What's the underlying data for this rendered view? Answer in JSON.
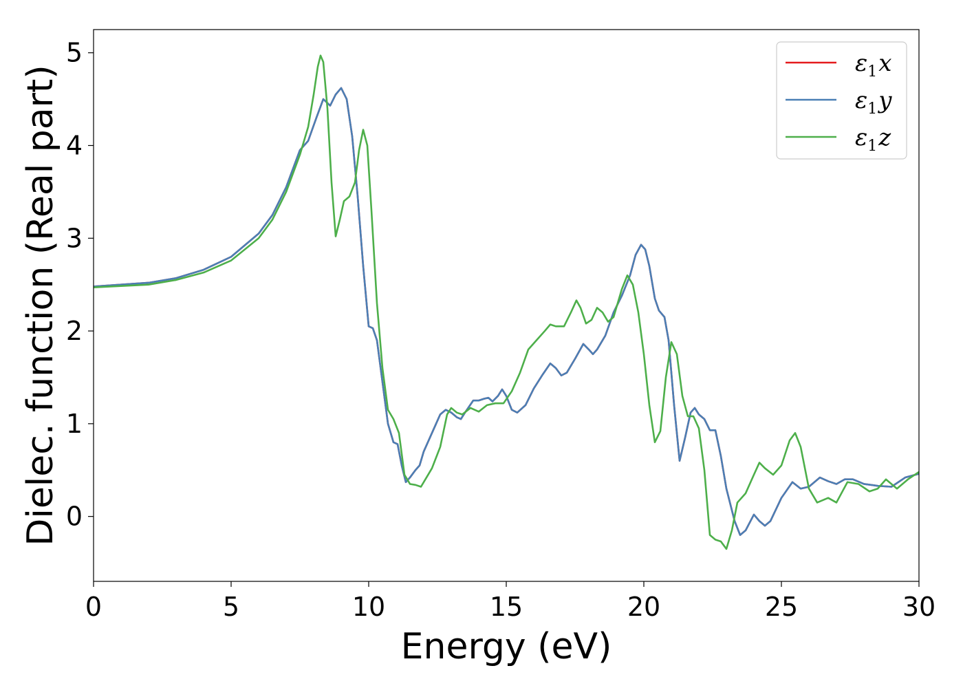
{
  "chart_data": {
    "type": "line",
    "title": "",
    "xlabel": "Energy (eV)",
    "ylabel": "Dielec. function (Real part)",
    "xlim": [
      0,
      30
    ],
    "ylim": [
      -0.7,
      5.25
    ],
    "xticks": [
      0,
      5,
      10,
      15,
      20,
      25,
      30
    ],
    "yticks": [
      0,
      1,
      2,
      3,
      4,
      5
    ],
    "grid": false,
    "legend_position": "top-right",
    "series": [
      {
        "name": "ε₁x",
        "legend_base": "ε",
        "legend_sub": "1",
        "legend_var": "x",
        "color": "#e41a1c",
        "points": [
          [
            0,
            2.48
          ],
          [
            2,
            2.52
          ],
          [
            3,
            2.57
          ],
          [
            4,
            2.66
          ],
          [
            5,
            2.8
          ],
          [
            6,
            3.05
          ],
          [
            6.5,
            3.25
          ],
          [
            7,
            3.55
          ],
          [
            7.5,
            3.95
          ],
          [
            7.8,
            4.05
          ],
          [
            8.1,
            4.3
          ],
          [
            8.35,
            4.5
          ],
          [
            8.6,
            4.43
          ],
          [
            8.8,
            4.55
          ],
          [
            9.0,
            4.62
          ],
          [
            9.2,
            4.5
          ],
          [
            9.4,
            4.1
          ],
          [
            9.6,
            3.45
          ],
          [
            9.8,
            2.7
          ],
          [
            10.0,
            2.05
          ],
          [
            10.15,
            2.03
          ],
          [
            10.3,
            1.9
          ],
          [
            10.5,
            1.45
          ],
          [
            10.7,
            1.0
          ],
          [
            10.9,
            0.8
          ],
          [
            11.05,
            0.78
          ],
          [
            11.2,
            0.55
          ],
          [
            11.35,
            0.37
          ],
          [
            11.5,
            0.42
          ],
          [
            11.7,
            0.5
          ],
          [
            11.85,
            0.55
          ],
          [
            12.0,
            0.7
          ],
          [
            12.3,
            0.9
          ],
          [
            12.6,
            1.1
          ],
          [
            12.8,
            1.15
          ],
          [
            13.0,
            1.12
          ],
          [
            13.2,
            1.07
          ],
          [
            13.35,
            1.05
          ],
          [
            13.5,
            1.12
          ],
          [
            13.8,
            1.25
          ],
          [
            14.0,
            1.25
          ],
          [
            14.2,
            1.27
          ],
          [
            14.35,
            1.28
          ],
          [
            14.5,
            1.24
          ],
          [
            14.7,
            1.3
          ],
          [
            14.85,
            1.37
          ],
          [
            15.0,
            1.3
          ],
          [
            15.2,
            1.15
          ],
          [
            15.4,
            1.12
          ],
          [
            15.7,
            1.2
          ],
          [
            16.0,
            1.38
          ],
          [
            16.3,
            1.52
          ],
          [
            16.6,
            1.65
          ],
          [
            16.8,
            1.6
          ],
          [
            17.0,
            1.52
          ],
          [
            17.2,
            1.55
          ],
          [
            17.5,
            1.7
          ],
          [
            17.8,
            1.86
          ],
          [
            18.0,
            1.8
          ],
          [
            18.15,
            1.75
          ],
          [
            18.3,
            1.8
          ],
          [
            18.6,
            1.95
          ],
          [
            18.9,
            2.2
          ],
          [
            19.2,
            2.38
          ],
          [
            19.5,
            2.6
          ],
          [
            19.7,
            2.82
          ],
          [
            19.9,
            2.93
          ],
          [
            20.05,
            2.88
          ],
          [
            20.2,
            2.7
          ],
          [
            20.4,
            2.35
          ],
          [
            20.55,
            2.22
          ],
          [
            20.75,
            2.15
          ],
          [
            20.9,
            1.9
          ],
          [
            21.1,
            1.2
          ],
          [
            21.3,
            0.6
          ],
          [
            21.5,
            0.85
          ],
          [
            21.7,
            1.12
          ],
          [
            21.85,
            1.17
          ],
          [
            22.0,
            1.1
          ],
          [
            22.2,
            1.05
          ],
          [
            22.4,
            0.93
          ],
          [
            22.6,
            0.93
          ],
          [
            22.8,
            0.65
          ],
          [
            23.0,
            0.3
          ],
          [
            23.3,
            -0.05
          ],
          [
            23.5,
            -0.2
          ],
          [
            23.7,
            -0.15
          ],
          [
            24.0,
            0.02
          ],
          [
            24.2,
            -0.05
          ],
          [
            24.4,
            -0.1
          ],
          [
            24.6,
            -0.05
          ],
          [
            25.0,
            0.2
          ],
          [
            25.4,
            0.37
          ],
          [
            25.7,
            0.3
          ],
          [
            26.0,
            0.32
          ],
          [
            26.4,
            0.42
          ],
          [
            26.7,
            0.38
          ],
          [
            27.0,
            0.35
          ],
          [
            27.3,
            0.4
          ],
          [
            27.6,
            0.4
          ],
          [
            28.0,
            0.35
          ],
          [
            28.5,
            0.33
          ],
          [
            29.0,
            0.32
          ],
          [
            29.5,
            0.42
          ],
          [
            30.0,
            0.46
          ]
        ]
      },
      {
        "name": "ε₁y",
        "legend_base": "ε",
        "legend_sub": "1",
        "legend_var": "y",
        "color": "#4a7fb5",
        "points": [
          [
            0,
            2.48
          ],
          [
            2,
            2.52
          ],
          [
            3,
            2.57
          ],
          [
            4,
            2.66
          ],
          [
            5,
            2.8
          ],
          [
            6,
            3.05
          ],
          [
            6.5,
            3.25
          ],
          [
            7,
            3.55
          ],
          [
            7.5,
            3.95
          ],
          [
            7.8,
            4.05
          ],
          [
            8.1,
            4.3
          ],
          [
            8.35,
            4.5
          ],
          [
            8.6,
            4.43
          ],
          [
            8.8,
            4.55
          ],
          [
            9.0,
            4.62
          ],
          [
            9.2,
            4.5
          ],
          [
            9.4,
            4.1
          ],
          [
            9.6,
            3.45
          ],
          [
            9.8,
            2.7
          ],
          [
            10.0,
            2.05
          ],
          [
            10.15,
            2.03
          ],
          [
            10.3,
            1.9
          ],
          [
            10.5,
            1.45
          ],
          [
            10.7,
            1.0
          ],
          [
            10.9,
            0.8
          ],
          [
            11.05,
            0.78
          ],
          [
            11.2,
            0.55
          ],
          [
            11.35,
            0.37
          ],
          [
            11.5,
            0.42
          ],
          [
            11.7,
            0.5
          ],
          [
            11.85,
            0.55
          ],
          [
            12.0,
            0.7
          ],
          [
            12.3,
            0.9
          ],
          [
            12.6,
            1.1
          ],
          [
            12.8,
            1.15
          ],
          [
            13.0,
            1.12
          ],
          [
            13.2,
            1.07
          ],
          [
            13.35,
            1.05
          ],
          [
            13.5,
            1.12
          ],
          [
            13.8,
            1.25
          ],
          [
            14.0,
            1.25
          ],
          [
            14.2,
            1.27
          ],
          [
            14.35,
            1.28
          ],
          [
            14.5,
            1.24
          ],
          [
            14.7,
            1.3
          ],
          [
            14.85,
            1.37
          ],
          [
            15.0,
            1.3
          ],
          [
            15.2,
            1.15
          ],
          [
            15.4,
            1.12
          ],
          [
            15.7,
            1.2
          ],
          [
            16.0,
            1.38
          ],
          [
            16.3,
            1.52
          ],
          [
            16.6,
            1.65
          ],
          [
            16.8,
            1.6
          ],
          [
            17.0,
            1.52
          ],
          [
            17.2,
            1.55
          ],
          [
            17.5,
            1.7
          ],
          [
            17.8,
            1.86
          ],
          [
            18.0,
            1.8
          ],
          [
            18.15,
            1.75
          ],
          [
            18.3,
            1.8
          ],
          [
            18.6,
            1.95
          ],
          [
            18.9,
            2.2
          ],
          [
            19.2,
            2.38
          ],
          [
            19.5,
            2.6
          ],
          [
            19.7,
            2.82
          ],
          [
            19.9,
            2.93
          ],
          [
            20.05,
            2.88
          ],
          [
            20.2,
            2.7
          ],
          [
            20.4,
            2.35
          ],
          [
            20.55,
            2.22
          ],
          [
            20.75,
            2.15
          ],
          [
            20.9,
            1.9
          ],
          [
            21.1,
            1.2
          ],
          [
            21.3,
            0.6
          ],
          [
            21.5,
            0.85
          ],
          [
            21.7,
            1.12
          ],
          [
            21.85,
            1.17
          ],
          [
            22.0,
            1.1
          ],
          [
            22.2,
            1.05
          ],
          [
            22.4,
            0.93
          ],
          [
            22.6,
            0.93
          ],
          [
            22.8,
            0.65
          ],
          [
            23.0,
            0.3
          ],
          [
            23.3,
            -0.05
          ],
          [
            23.5,
            -0.2
          ],
          [
            23.7,
            -0.15
          ],
          [
            24.0,
            0.02
          ],
          [
            24.2,
            -0.05
          ],
          [
            24.4,
            -0.1
          ],
          [
            24.6,
            -0.05
          ],
          [
            25.0,
            0.2
          ],
          [
            25.4,
            0.37
          ],
          [
            25.7,
            0.3
          ],
          [
            26.0,
            0.32
          ],
          [
            26.4,
            0.42
          ],
          [
            26.7,
            0.38
          ],
          [
            27.0,
            0.35
          ],
          [
            27.3,
            0.4
          ],
          [
            27.6,
            0.4
          ],
          [
            28.0,
            0.35
          ],
          [
            28.5,
            0.33
          ],
          [
            29.0,
            0.32
          ],
          [
            29.5,
            0.42
          ],
          [
            30.0,
            0.46
          ]
        ]
      },
      {
        "name": "ε₁z",
        "legend_base": "ε",
        "legend_sub": "1",
        "legend_var": "z",
        "color": "#4daf4a",
        "points": [
          [
            0,
            2.47
          ],
          [
            2,
            2.5
          ],
          [
            3,
            2.55
          ],
          [
            4,
            2.63
          ],
          [
            5,
            2.76
          ],
          [
            6,
            3.0
          ],
          [
            6.5,
            3.2
          ],
          [
            7,
            3.5
          ],
          [
            7.5,
            3.9
          ],
          [
            7.8,
            4.2
          ],
          [
            8.0,
            4.55
          ],
          [
            8.15,
            4.85
          ],
          [
            8.25,
            4.97
          ],
          [
            8.35,
            4.9
          ],
          [
            8.5,
            4.4
          ],
          [
            8.65,
            3.6
          ],
          [
            8.8,
            3.02
          ],
          [
            8.95,
            3.2
          ],
          [
            9.1,
            3.4
          ],
          [
            9.3,
            3.45
          ],
          [
            9.5,
            3.6
          ],
          [
            9.65,
            3.95
          ],
          [
            9.8,
            4.17
          ],
          [
            9.95,
            4.0
          ],
          [
            10.1,
            3.3
          ],
          [
            10.3,
            2.3
          ],
          [
            10.5,
            1.6
          ],
          [
            10.7,
            1.15
          ],
          [
            10.9,
            1.05
          ],
          [
            11.1,
            0.9
          ],
          [
            11.3,
            0.45
          ],
          [
            11.5,
            0.35
          ],
          [
            11.7,
            0.34
          ],
          [
            11.9,
            0.32
          ],
          [
            12.1,
            0.42
          ],
          [
            12.3,
            0.52
          ],
          [
            12.6,
            0.75
          ],
          [
            12.85,
            1.1
          ],
          [
            13.0,
            1.17
          ],
          [
            13.2,
            1.12
          ],
          [
            13.4,
            1.1
          ],
          [
            13.7,
            1.17
          ],
          [
            14.0,
            1.13
          ],
          [
            14.3,
            1.2
          ],
          [
            14.6,
            1.22
          ],
          [
            14.9,
            1.22
          ],
          [
            15.2,
            1.35
          ],
          [
            15.5,
            1.55
          ],
          [
            15.8,
            1.8
          ],
          [
            16.1,
            1.9
          ],
          [
            16.4,
            2.0
          ],
          [
            16.6,
            2.07
          ],
          [
            16.8,
            2.05
          ],
          [
            17.1,
            2.05
          ],
          [
            17.35,
            2.2
          ],
          [
            17.55,
            2.33
          ],
          [
            17.7,
            2.25
          ],
          [
            17.9,
            2.08
          ],
          [
            18.1,
            2.12
          ],
          [
            18.3,
            2.25
          ],
          [
            18.5,
            2.2
          ],
          [
            18.7,
            2.1
          ],
          [
            18.9,
            2.15
          ],
          [
            19.2,
            2.45
          ],
          [
            19.4,
            2.6
          ],
          [
            19.6,
            2.5
          ],
          [
            19.8,
            2.2
          ],
          [
            20.0,
            1.75
          ],
          [
            20.2,
            1.2
          ],
          [
            20.4,
            0.8
          ],
          [
            20.6,
            0.92
          ],
          [
            20.8,
            1.5
          ],
          [
            21.0,
            1.88
          ],
          [
            21.2,
            1.75
          ],
          [
            21.4,
            1.3
          ],
          [
            21.6,
            1.08
          ],
          [
            21.8,
            1.08
          ],
          [
            22.0,
            0.95
          ],
          [
            22.2,
            0.5
          ],
          [
            22.4,
            -0.2
          ],
          [
            22.6,
            -0.25
          ],
          [
            22.8,
            -0.27
          ],
          [
            23.0,
            -0.35
          ],
          [
            23.2,
            -0.15
          ],
          [
            23.4,
            0.15
          ],
          [
            23.7,
            0.25
          ],
          [
            24.0,
            0.45
          ],
          [
            24.2,
            0.58
          ],
          [
            24.4,
            0.52
          ],
          [
            24.7,
            0.45
          ],
          [
            25.0,
            0.55
          ],
          [
            25.3,
            0.82
          ],
          [
            25.5,
            0.9
          ],
          [
            25.7,
            0.75
          ],
          [
            26.0,
            0.3
          ],
          [
            26.3,
            0.15
          ],
          [
            26.7,
            0.2
          ],
          [
            27.0,
            0.15
          ],
          [
            27.4,
            0.37
          ],
          [
            27.8,
            0.35
          ],
          [
            28.2,
            0.27
          ],
          [
            28.5,
            0.3
          ],
          [
            28.8,
            0.4
          ],
          [
            29.2,
            0.3
          ],
          [
            29.6,
            0.4
          ],
          [
            30.0,
            0.48
          ]
        ]
      }
    ]
  }
}
